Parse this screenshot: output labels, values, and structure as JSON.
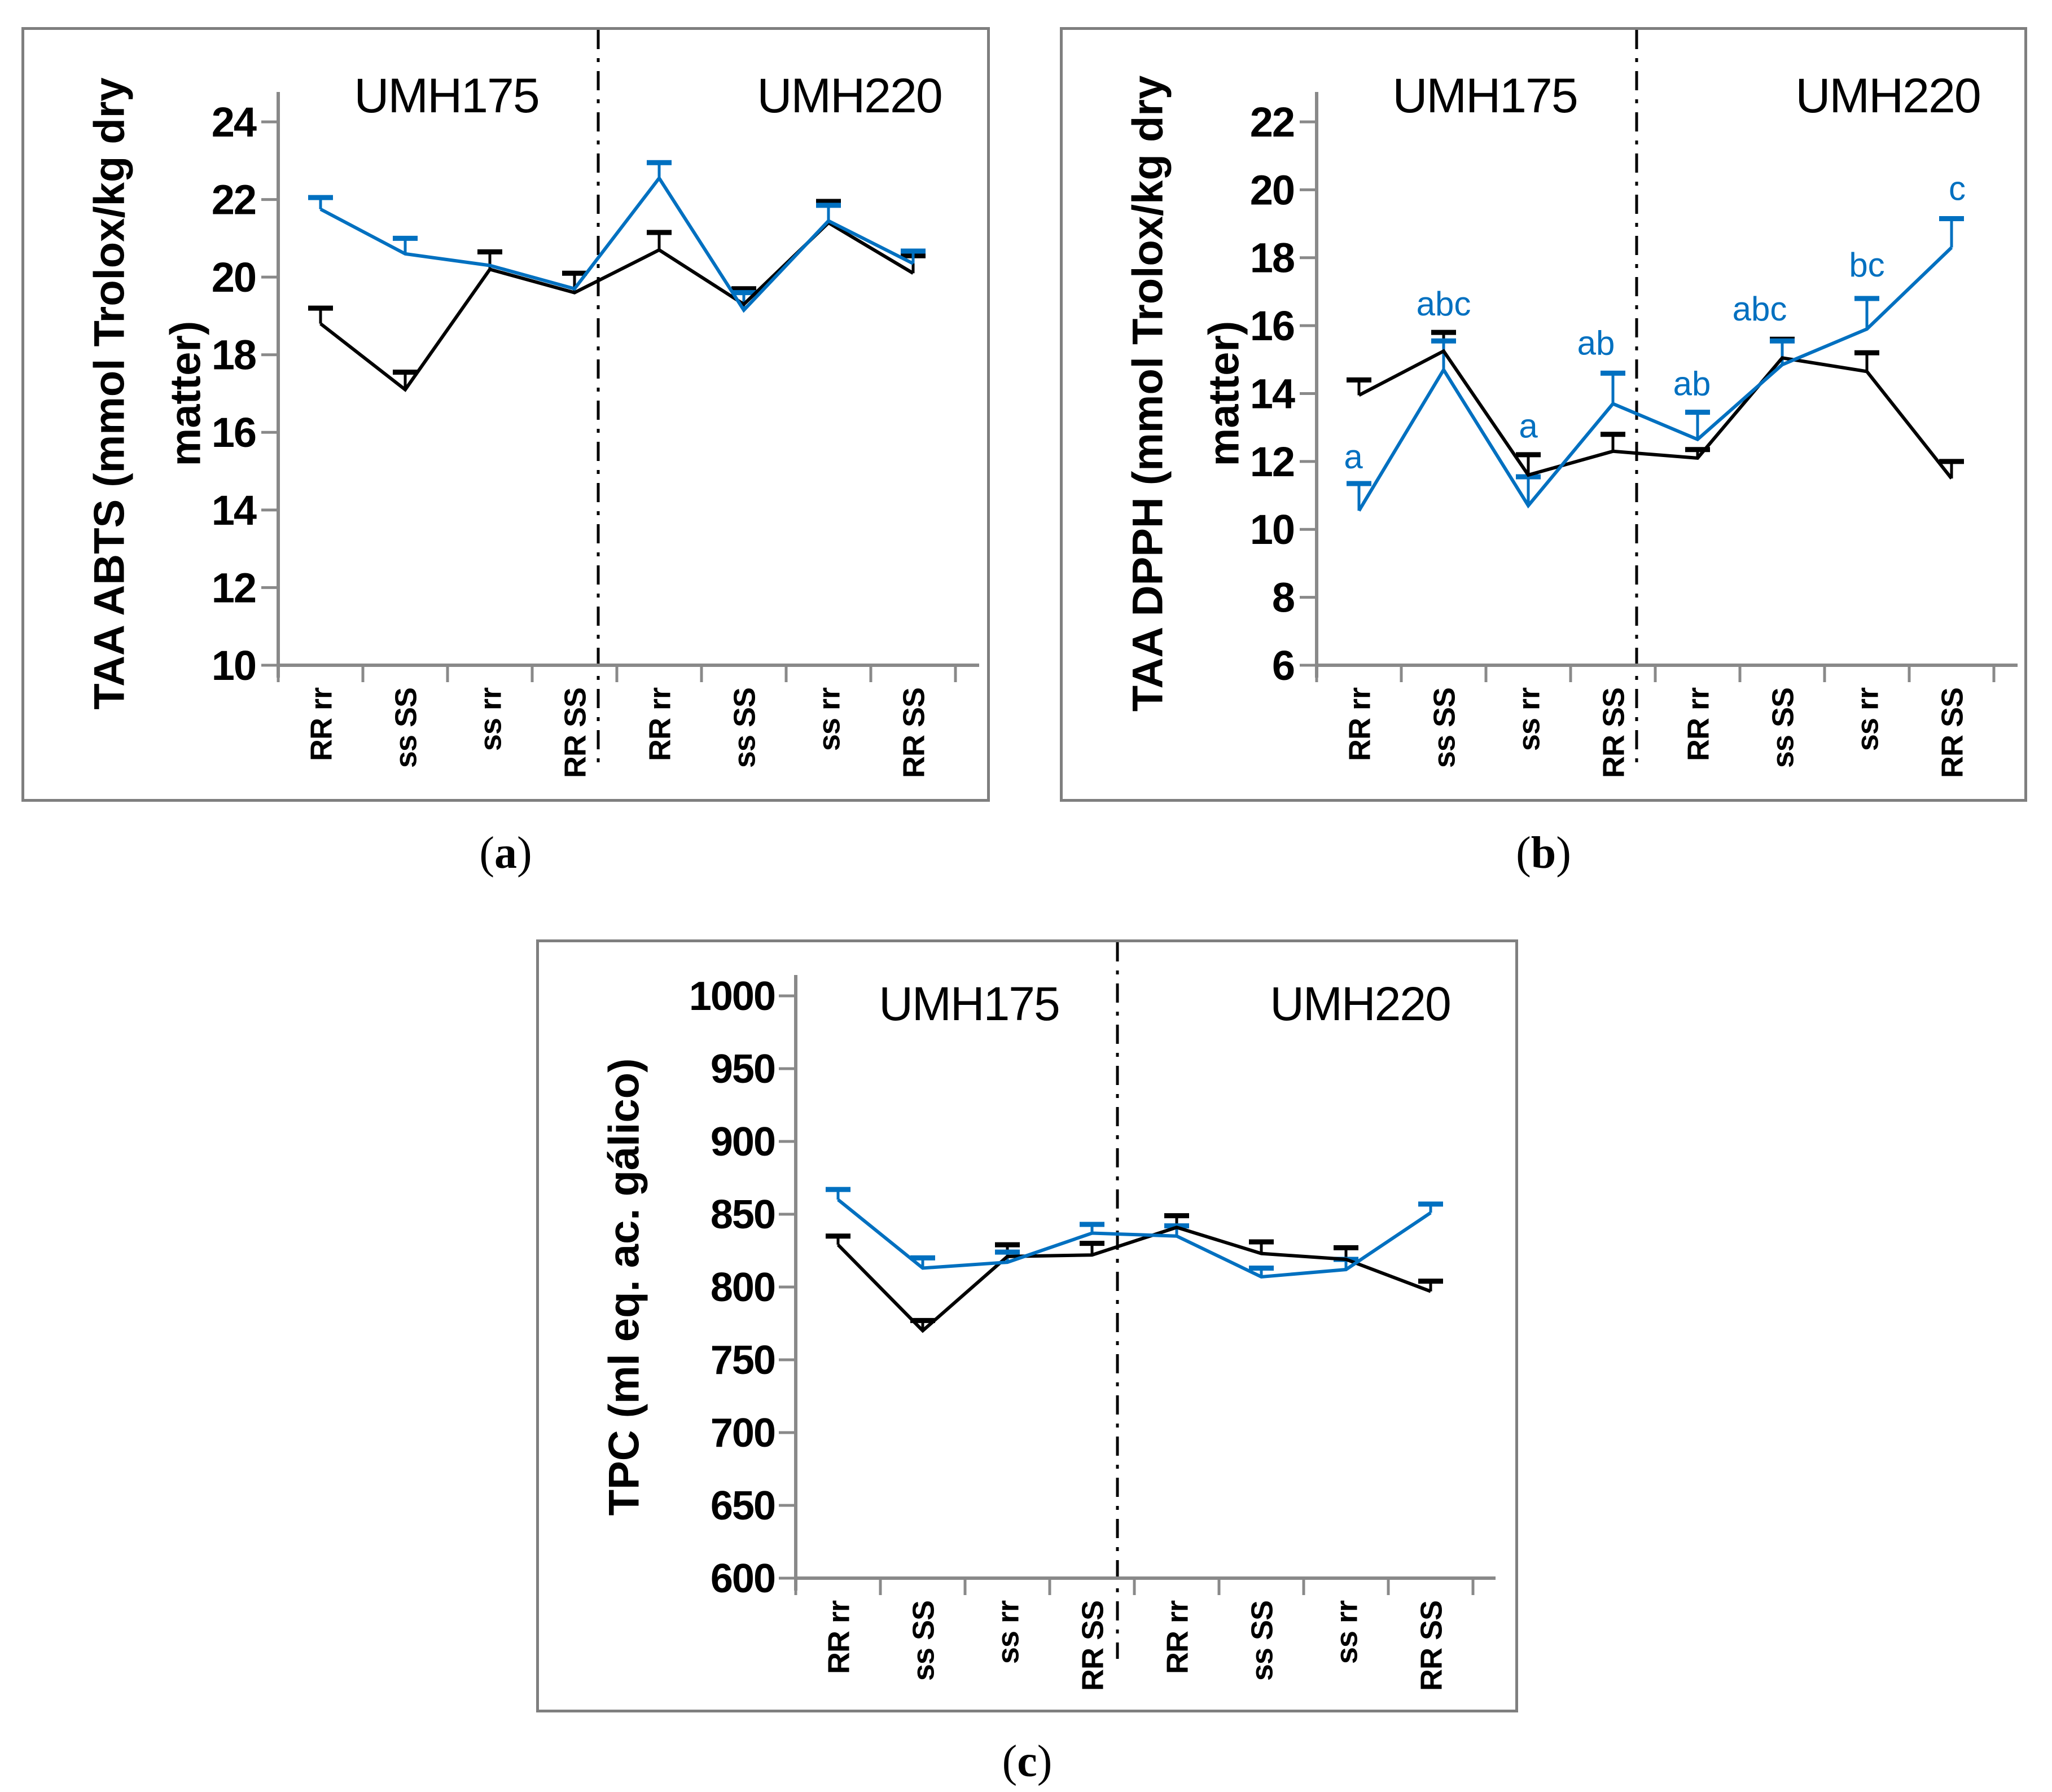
{
  "figure": {
    "background": "#ffffff",
    "captions": [
      {
        "open": "(",
        "letter": "a",
        "close": ")"
      },
      {
        "open": "(",
        "letter": "b",
        "close": ")"
      },
      {
        "open": "(",
        "letter": "c",
        "close": ")"
      }
    ]
  },
  "colors": {
    "series_black": "#000000",
    "series_blue": "#0070C0",
    "axis_gray": "#898989",
    "panel_border_gray": "#7f7f7f",
    "divider_black": "#000000",
    "text_black": "#000000"
  },
  "chart_data": [
    {
      "id": "a",
      "type": "line",
      "group_headers": [
        "UMH175",
        "UMH220"
      ],
      "ylabel": "TAA ABTS (mmol Trolox/kg dry matter)",
      "ylabel_lines": [
        "TAA ABTS (mmol Trolox/kg dry",
        "matter)"
      ],
      "categories": [
        "RR rr",
        "ss SS",
        "ss rr",
        "RR SS",
        "RR rr",
        "ss SS",
        "ss rr",
        "RR SS"
      ],
      "ylim": [
        10,
        24
      ],
      "yticks": [
        10,
        12,
        14,
        16,
        18,
        20,
        22,
        24
      ],
      "grid": false,
      "legend": "none",
      "error_bar_direction": "up",
      "divider": "vertical dash-dot line between 4th and 5th category",
      "series": [
        {
          "name": "black-line",
          "color": "#000000",
          "values": [
            18.8,
            17.1,
            20.2,
            19.6,
            20.7,
            19.3,
            21.4,
            20.1
          ],
          "err_top": [
            19.2,
            17.55,
            20.65,
            20.1,
            21.15,
            19.7,
            21.95,
            20.55
          ]
        },
        {
          "name": "blue-line",
          "color": "#0070C0",
          "values": [
            21.75,
            20.6,
            20.3,
            19.7,
            22.55,
            19.15,
            21.45,
            20.35
          ],
          "err_top": [
            22.05,
            21.0,
            null,
            null,
            22.95,
            19.6,
            21.85,
            20.67
          ]
        }
      ]
    },
    {
      "id": "b",
      "type": "line",
      "group_headers": [
        "UMH175",
        "UMH220"
      ],
      "ylabel": "TAA DPPH (mmol Trolox/kg dry matter)",
      "ylabel_lines": [
        "TAA DPPH (mmol Trolox/kg dry",
        "matter)"
      ],
      "categories": [
        "RR rr",
        "ss SS",
        "ss rr",
        "RR SS",
        "RR rr",
        "ss SS",
        "ss rr",
        "RR SS"
      ],
      "ylim": [
        6,
        22
      ],
      "yticks": [
        6,
        8,
        10,
        12,
        14,
        16,
        18,
        20,
        22
      ],
      "grid": false,
      "legend": "none",
      "error_bar_direction": "up",
      "divider": "vertical dash-dot line between 4th and 5th category",
      "series": [
        {
          "name": "black-line",
          "color": "#000000",
          "values": [
            13.95,
            15.25,
            11.6,
            12.3,
            12.1,
            15.05,
            14.65,
            11.5
          ],
          "err_top": [
            14.4,
            15.8,
            12.2,
            12.8,
            12.35,
            15.6,
            15.2,
            12.0
          ]
        },
        {
          "name": "blue-line",
          "color": "#0070C0",
          "values": [
            10.55,
            14.7,
            10.7,
            13.7,
            12.65,
            14.85,
            15.9,
            18.3
          ],
          "err_top": [
            11.35,
            15.55,
            11.55,
            14.6,
            13.45,
            15.55,
            16.8,
            19.15
          ],
          "sig_labels": [
            "a",
            "abc",
            "a",
            "ab",
            "ab",
            "abc",
            "bc",
            "c"
          ],
          "sig_label_y": [
            11.8,
            16.3,
            12.7,
            15.15,
            13.95,
            16.15,
            17.45,
            19.7
          ],
          "sig_label_dx": [
            -10,
            0,
            0,
            -30,
            -10,
            -40,
            0,
            10
          ]
        }
      ]
    },
    {
      "id": "c",
      "type": "line",
      "group_headers": [
        "UMH175",
        "UMH220"
      ],
      "ylabel": "TPC (ml eq. ac. gálico)",
      "ylabel_lines": [
        "TPC (ml eq. ac. gálico)"
      ],
      "categories": [
        "RR rr",
        "ss SS",
        "ss rr",
        "RR SS",
        "RR rr",
        "ss SS",
        "ss rr",
        "RR SS"
      ],
      "ylim": [
        600,
        1000
      ],
      "yticks": [
        600,
        650,
        700,
        750,
        800,
        850,
        900,
        950,
        1000
      ],
      "grid": false,
      "legend": "none",
      "error_bar_direction": "up",
      "divider": "vertical dash-dot line between 4th and 5th category",
      "series": [
        {
          "name": "black-line",
          "color": "#000000",
          "values": [
            829,
            770,
            821,
            822,
            841,
            823,
            819,
            797
          ],
          "err_top": [
            835,
            777,
            829,
            830,
            849,
            831,
            827,
            804
          ]
        },
        {
          "name": "blue-line",
          "color": "#0070C0",
          "values": [
            860,
            813,
            817,
            837,
            835,
            807,
            812,
            851
          ],
          "err_top": [
            867,
            820,
            824,
            843,
            842,
            813,
            819,
            857
          ]
        }
      ]
    }
  ]
}
